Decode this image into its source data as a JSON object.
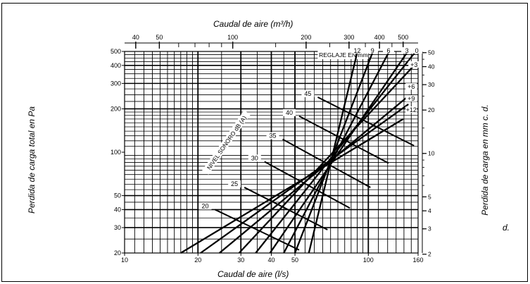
{
  "chart_data": {
    "type": "line",
    "title": "Caudal de aire (m³/h)",
    "xlabel": "Caudal de aire (l/s)",
    "x2label": "Caudal de aire (m³/h)",
    "ylabel": "Perdida de carga total en Pa",
    "y2label": "Perdida de carga en mm c. d.",
    "y2label_wrap": "d.",
    "x_scale": "log",
    "y_scale": "log",
    "xlim": [
      10,
      160
    ],
    "ylim": [
      20,
      500
    ],
    "grid": true,
    "x_ticks": [
      10,
      20,
      30,
      40,
      50,
      100,
      160
    ],
    "x_tick_labels": [
      "10",
      "20",
      "30",
      "40",
      "50",
      "100",
      "160"
    ],
    "x2_ticks": [
      40,
      50,
      100,
      200,
      300,
      400,
      500
    ],
    "x2_tick_labels": [
      "40",
      "50",
      "100",
      "200",
      "300",
      "400",
      "500"
    ],
    "y_ticks": [
      20,
      30,
      40,
      50,
      100,
      200,
      300,
      400,
      500
    ],
    "y_tick_labels": [
      "20",
      "30",
      "40",
      "50",
      "100",
      "200",
      "300",
      "400",
      "500"
    ],
    "y2_ticks": [
      2,
      3,
      4,
      5,
      10,
      20,
      30,
      40,
      50
    ],
    "y2_tick_labels": [
      "2",
      "3",
      "4",
      "5",
      "10",
      "20",
      "30",
      "40",
      "50"
    ],
    "reglaje_title": "REGLAJE EN mm",
    "nivel_title": "NIVEL SONORO dB (A)",
    "series": [
      {
        "name": "+12",
        "points": [
          [
            17.0,
            20
          ],
          [
            139,
            170
          ]
        ]
      },
      {
        "name": "+9",
        "points": [
          [
            20.5,
            20
          ],
          [
            146,
            215
          ]
        ]
      },
      {
        "name": "+6",
        "points": [
          [
            24.5,
            20
          ],
          [
            148,
            250
          ]
        ]
      },
      {
        "name": "+3",
        "points": [
          [
            29.5,
            20
          ],
          [
            153,
            395
          ]
        ]
      },
      {
        "name": "0",
        "points": [
          [
            34.5,
            20
          ],
          [
            155,
            490
          ]
        ]
      },
      {
        "name": "3",
        "points": [
          [
            39.5,
            20
          ],
          [
            144,
            490
          ]
        ]
      },
      {
        "name": "6",
        "points": [
          [
            45.0,
            20
          ],
          [
            121,
            490
          ]
        ]
      },
      {
        "name": "9",
        "points": [
          [
            50.0,
            20
          ],
          [
            104,
            490
          ]
        ]
      },
      {
        "name": "12",
        "points": [
          [
            57.0,
            20
          ],
          [
            90,
            490
          ]
        ]
      }
    ],
    "sound_levels": [
      {
        "name": "20",
        "points": [
          [
            23.5,
            40
          ],
          [
            52,
            21
          ]
        ]
      },
      {
        "name": "25",
        "points": [
          [
            31.0,
            57
          ],
          [
            68,
            29
          ]
        ]
      },
      {
        "name": "30",
        "points": [
          [
            37.5,
            86
          ],
          [
            84,
            41
          ]
        ]
      },
      {
        "name": "35",
        "points": [
          [
            44.5,
            123
          ],
          [
            102,
            57
          ]
        ]
      },
      {
        "name": "40",
        "points": [
          [
            52.0,
            178
          ],
          [
            121,
            84
          ]
        ]
      },
      {
        "name": "45",
        "points": [
          [
            62.0,
            241
          ],
          [
            154,
            111
          ]
        ]
      }
    ],
    "reglaje_labels": [
      {
        "text": "12",
        "x": 90,
        "y": 495
      },
      {
        "text": "9",
        "x": 104,
        "y": 495
      },
      {
        "text": "6",
        "x": 121,
        "y": 495
      },
      {
        "text": "3",
        "x": 144,
        "y": 495
      },
      {
        "text": "0",
        "x": 158,
        "y": 495
      },
      {
        "text": "+3",
        "x": 154,
        "y": 395
      },
      {
        "text": "+6",
        "x": 150,
        "y": 278
      },
      {
        "text": "+9",
        "x": 150,
        "y": 230
      },
      {
        "text": "+12",
        "x": 150,
        "y": 192
      }
    ]
  }
}
